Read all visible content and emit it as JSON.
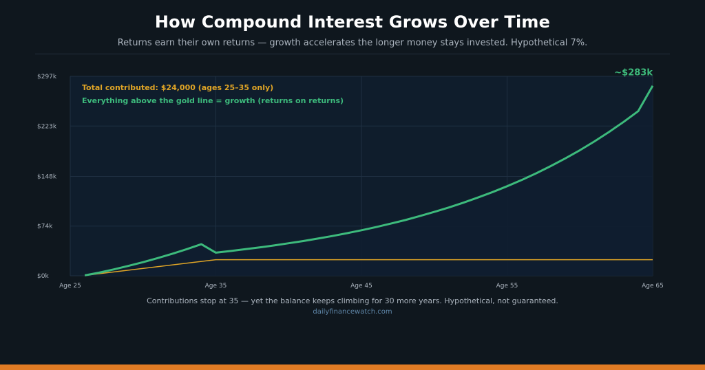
{
  "header": {
    "title": "How Compound Interest Grows Over Time",
    "subtitle": "Returns earn their own returns — growth accelerates the longer money stays invested. Hypothetical 7%."
  },
  "footer": {
    "caption": "Contributions stop at 35 — yet the balance keeps climbing for 30 more years. Hypothetical, not guaranteed.",
    "source": "dailyfinancewatch.com"
  },
  "colors": {
    "background": "#0f171e",
    "plot_fill": "#0f1d2c",
    "grid": "#1f3042",
    "growth_line": "#3dba7c",
    "contribution_line": "#e0a526",
    "bottom_bar": "#e07b24"
  },
  "chart_data": {
    "type": "area",
    "title": "How Compound Interest Grows Over Time",
    "x_ticks": [
      25,
      35,
      45,
      55,
      65
    ],
    "x_tick_labels": [
      "Age 25",
      "Age 35",
      "Age 45",
      "Age 55",
      "Age 65"
    ],
    "xlim": [
      25,
      65
    ],
    "y_ticks": [
      0,
      74,
      148,
      223,
      297
    ],
    "y_tick_labels": [
      "$0k",
      "$74k",
      "$148k",
      "$223k",
      "$297k"
    ],
    "ylim": [
      0,
      297
    ],
    "grid": true,
    "series": [
      {
        "role": "balance",
        "color": "#3dba7c",
        "x": [
          26,
          27,
          28,
          29,
          30,
          31,
          32,
          33,
          34,
          35,
          36,
          37,
          38,
          39,
          40,
          41,
          42,
          43,
          44,
          45,
          46,
          47,
          48,
          49,
          50,
          51,
          52,
          53,
          54,
          55,
          56,
          57,
          58,
          59,
          60,
          61,
          62,
          63,
          64,
          65
        ],
        "values": [
          0.6,
          4.7,
          9.5,
          14.7,
          20.3,
          26.3,
          32.7,
          39.6,
          47.0,
          34.4,
          36.9,
          39.5,
          42.2,
          45.2,
          48.4,
          51.7,
          55.4,
          59.2,
          63.4,
          67.8,
          72.5,
          77.6,
          83.0,
          88.9,
          95.1,
          101.7,
          108.9,
          116.5,
          124.6,
          133.3,
          142.6,
          152.6,
          163.3,
          174.8,
          187.0,
          200.1,
          214.1,
          229.1,
          245.1,
          283.0
        ]
      },
      {
        "role": "contributions",
        "color": "#e0a526",
        "x": [
          26,
          35,
          65
        ],
        "values": [
          0.6,
          24,
          24
        ]
      }
    ],
    "annotations": [
      {
        "text": "Total contributed: $24,000 (ages 25–35 only)",
        "color": "#e0a526"
      },
      {
        "text": "Everything above the gold line = growth (returns on returns)",
        "color": "#3dba7c"
      },
      {
        "text": "~$283k",
        "color": "#3dba7c",
        "x": 65,
        "y": 283
      }
    ]
  }
}
